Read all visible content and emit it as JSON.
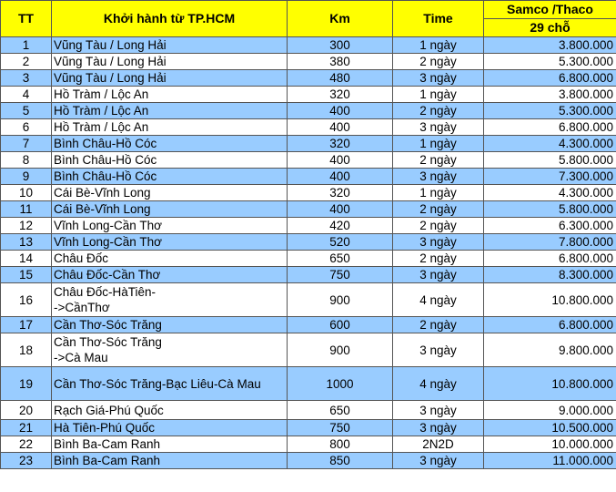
{
  "header": {
    "tt": "TT",
    "route": "Khởi hành từ TP.HCM",
    "km": "Km",
    "time": "Time",
    "price_top": "Samco /Thaco",
    "price_sub": "29 chỗ"
  },
  "rows": [
    {
      "tt": "1",
      "route": "Vũng Tàu / Long Hải",
      "km": "300",
      "time": "1 ngày",
      "price": "3.800.000"
    },
    {
      "tt": "2",
      "route": "Vũng Tàu / Long Hải",
      "km": "380",
      "time": "2 ngày",
      "price": "5.300.000"
    },
    {
      "tt": "3",
      "route": "Vũng Tàu / Long Hải",
      "km": "480",
      "time": "3 ngày",
      "price": "6.800.000"
    },
    {
      "tt": "4",
      "route": "Hồ Tràm / Lộc An",
      "km": "320",
      "time": "1 ngày",
      "price": "3.800.000"
    },
    {
      "tt": "5",
      "route": "Hồ Tràm / Lộc An",
      "km": "400",
      "time": "2 ngày",
      "price": "5.300.000"
    },
    {
      "tt": "6",
      "route": "Hồ Tràm / Lộc An",
      "km": "400",
      "time": "3 ngày",
      "price": "6.800.000"
    },
    {
      "tt": "7",
      "route": "Bình Châu-Hồ Cóc",
      "km": "320",
      "time": "1 ngày",
      "price": "4.300.000"
    },
    {
      "tt": "8",
      "route": "Bình Châu-Hồ Cóc",
      "km": "400",
      "time": "2 ngày",
      "price": "5.800.000"
    },
    {
      "tt": "9",
      "route": "Bình Châu-Hồ Cóc",
      "km": "400",
      "time": "3 ngày",
      "price": "7.300.000"
    },
    {
      "tt": "10",
      "route": "Cái Bè-Vĩnh Long",
      "km": "320",
      "time": "1 ngày",
      "price": "4.300.000"
    },
    {
      "tt": "11",
      "route": "Cái Bè-Vĩnh Long",
      "km": "400",
      "time": "2 ngày",
      "price": "5.800.000"
    },
    {
      "tt": "12",
      "route": "Vĩnh Long-Cần Thơ",
      "km": "420",
      "time": "2 ngày",
      "price": "6.300.000"
    },
    {
      "tt": "13",
      "route": "Vĩnh Long-Cần Thơ",
      "km": "520",
      "time": "3 ngày",
      "price": "7.800.000"
    },
    {
      "tt": "14",
      "route": "Châu Đốc",
      "km": "650",
      "time": "2 ngày",
      "price": "6.800.000"
    },
    {
      "tt": "15",
      "route": "Châu Đốc-Cần Thơ",
      "km": "750",
      "time": "3 ngày",
      "price": "8.300.000"
    },
    {
      "tt": "16",
      "route_line1": "Châu Đốc-HàTiên-",
      "route_line2": "->CầnThơ",
      "km": "900",
      "time": "4 ngày",
      "price": "10.800.000"
    },
    {
      "tt": "17",
      "route": "Cần Thơ-Sóc Trăng",
      "km": "600",
      "time": "2 ngày",
      "price": "6.800.000"
    },
    {
      "tt": "18",
      "route_line1": "Cần Thơ-Sóc Trăng",
      "route_line2": "->Cà Mau",
      "km": "900",
      "time": "3 ngày",
      "price": "9.800.000"
    },
    {
      "tt": "19",
      "route": "Cần Thơ-Sóc Trăng-Bạc Liêu-Cà Mau",
      "km": "1000",
      "time": "4 ngày",
      "price": "10.800.000"
    },
    {
      "tt": "20",
      "route": "Rạch Giá-Phú Quốc",
      "km": "650",
      "time": "3 ngày",
      "price": "9.000.000"
    },
    {
      "tt": "21",
      "route": "Hà Tiên-Phú Quốc",
      "km": "750",
      "time": "3 ngày",
      "price": "10.500.000"
    },
    {
      "tt": "22",
      "route": "Bình Ba-Cam Ranh",
      "km": "800",
      "time": "2N2D",
      "price": "10.000.000"
    },
    {
      "tt": "23",
      "route": "Bình Ba-Cam Ranh",
      "km": "850",
      "time": "3 ngày",
      "price": "11.000.000"
    }
  ],
  "colors": {
    "header_bg": "#ffff00",
    "row_blue": "#99ccff",
    "row_white": "#ffffff"
  }
}
